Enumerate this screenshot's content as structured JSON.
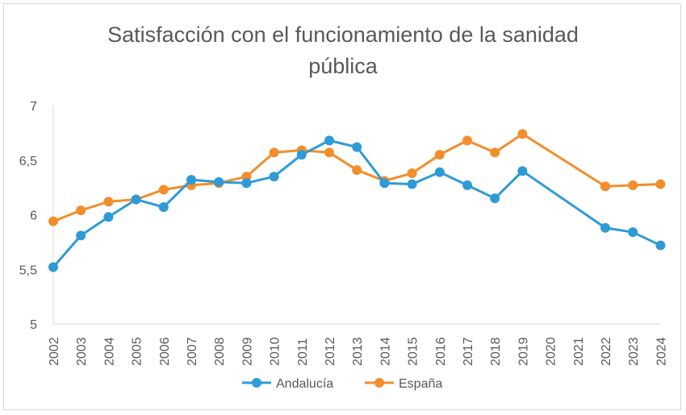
{
  "chart_data": {
    "type": "line",
    "title": "Satisfacción con el funcionamiento de la sanidad pública",
    "title_lines": [
      "Satisfacción con el funcionamiento de la sanidad",
      "pública"
    ],
    "xlabel": "",
    "ylabel": "",
    "ylim": [
      5,
      7
    ],
    "yticks": [
      "5",
      "5,5",
      "6",
      "6,5",
      "7"
    ],
    "ytick_values": [
      5,
      5.5,
      6,
      6.5,
      7
    ],
    "categories": [
      "2002",
      "2003",
      "2004",
      "2005",
      "2006",
      "2007",
      "2008",
      "2009",
      "2010",
      "2011",
      "2012",
      "2013",
      "2014",
      "2015",
      "2016",
      "2017",
      "2018",
      "2019",
      "2020",
      "2021",
      "2022",
      "2023",
      "2024"
    ],
    "grid": false,
    "legend_position": "bottom",
    "series": [
      {
        "name": "Andalucía",
        "color": "#2E9BD6",
        "values": [
          5.52,
          5.81,
          5.98,
          6.14,
          6.07,
          6.32,
          6.3,
          6.29,
          6.35,
          6.55,
          6.68,
          6.62,
          6.29,
          6.28,
          6.39,
          6.27,
          6.15,
          6.4,
          null,
          null,
          5.88,
          5.84,
          5.72
        ]
      },
      {
        "name": "España",
        "color": "#F28E2B",
        "values": [
          5.94,
          6.04,
          6.12,
          6.14,
          6.23,
          6.27,
          6.29,
          6.35,
          6.57,
          6.59,
          6.57,
          6.41,
          6.31,
          6.38,
          6.55,
          6.68,
          6.57,
          6.74,
          null,
          null,
          6.26,
          6.27,
          6.28
        ]
      }
    ]
  }
}
